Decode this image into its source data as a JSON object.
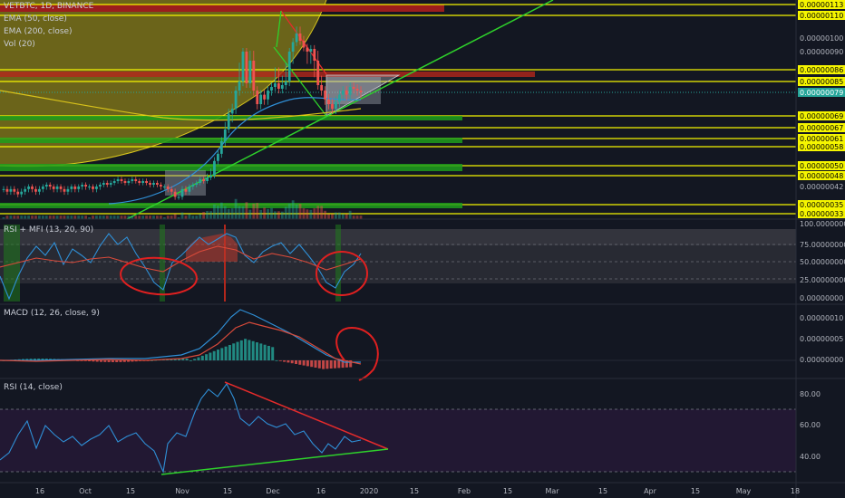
{
  "header": {
    "symbol": "VETBTC, 1D, BINANCE",
    "ema50": "EMA (50, close)",
    "ema200": "EMA (200, close)",
    "vol": "Vol (20)"
  },
  "colors": {
    "background": "#131722",
    "yellow": "#f5f500",
    "green": "#21c21e",
    "red": "#e52b2b",
    "ema50": "#2f8fd6",
    "ema200": "#d8c21a",
    "current_price_bg": "#26a69a"
  },
  "chart_data": [
    {
      "type": "candlestick",
      "title": "VETBTC, 1D, BINANCE",
      "indicators": [
        "EMA (50, close)",
        "EMA (200, close)",
        "Vol (20)"
      ],
      "ylim": [
        2e-07,
        1.15e-05
      ],
      "y_ticks": [
        "0.00000100",
        "0.00000090",
        "0.00000042"
      ],
      "price_labels": [
        {
          "value": 1.13e-06,
          "text": "0.00000113",
          "style": "yellow"
        },
        {
          "value": 1.1e-06,
          "text": "0.00000110",
          "style": "yellow"
        },
        {
          "value": 8.6e-07,
          "text": "0.00000086",
          "style": "yellow"
        },
        {
          "value": 8.5e-07,
          "text": "0.00000085",
          "style": "yellow"
        },
        {
          "value": 7.9e-07,
          "text": "0.00000079",
          "style": "current"
        },
        {
          "value": 6.9e-07,
          "text": "0.00000069",
          "style": "yellow"
        },
        {
          "value": 6.7e-07,
          "text": "0.00000067",
          "style": "yellow"
        },
        {
          "value": 6.1e-07,
          "text": "0.00000061",
          "style": "yellow"
        },
        {
          "value": 5.8e-07,
          "text": "0.00000058",
          "style": "yellow"
        },
        {
          "value": 5e-07,
          "text": "0.00000050",
          "style": "yellow"
        },
        {
          "value": 4.8e-07,
          "text": "0.00000048",
          "style": "yellow"
        },
        {
          "value": 3.5e-07,
          "text": "0.00000035",
          "style": "yellow"
        },
        {
          "value": 3.3e-07,
          "text": "0.00000033",
          "style": "yellow"
        }
      ],
      "close_series": [
        4.1e-07,
        4e-07,
        4.1e-07,
        4e-07,
        3.9e-07,
        4e-07,
        4.1e-07,
        4.2e-07,
        4.1e-07,
        4e-07,
        4.1e-07,
        4.2e-07,
        4.3e-07,
        4.2e-07,
        4.1e-07,
        4.2e-07,
        4.1e-07,
        4e-07,
        4.1e-07,
        4.2e-07,
        4.1e-07,
        4.2e-07,
        4.3e-07,
        4.2e-07,
        4.2e-07,
        4.1e-07,
        4.2e-07,
        4.3e-07,
        4.4e-07,
        4.3e-07,
        4.4e-07,
        4.5e-07,
        4.6e-07,
        4.5e-07,
        4.4e-07,
        4.5e-07,
        4.6e-07,
        4.5e-07,
        4.4e-07,
        4.5e-07,
        4.4e-07,
        4.3e-07,
        4.4e-07,
        4.3e-07,
        4.2e-07,
        4.2e-07,
        4.1e-07,
        4e-07,
        3.8e-07,
        3.8e-07,
        4.1e-07,
        4e-07,
        4.2e-07,
        4.3e-07,
        4.4e-07,
        4.6e-07,
        4.5e-07,
        4.7e-07,
        4.8e-07,
        5.2e-07,
        5.5e-07,
        6e-07,
        6.6e-07,
        7e-07,
        7.2e-07,
        8e-07,
        8.5e-07,
        9e-07,
        8.4e-07,
        8.8e-07,
        8e-07,
        7.4e-07,
        7.8e-07,
        7.6e-07,
        8e-07,
        8.2e-07,
        8.4e-07,
        8.1e-07,
        8.3e-07,
        8.5e-07,
        9e-07,
        9.7e-07,
        1.02e-06,
        9.8e-07,
        9.3e-07,
        9e-07,
        9.2e-07,
        8.8e-07,
        8.3e-07,
        8e-07,
        7.6e-07,
        7.4e-07,
        7.2e-07,
        7.5e-07,
        7.8e-07,
        8e-07,
        7.8e-07,
        8.2e-07,
        8.1e-07,
        8e-07,
        7.9e-07
      ]
    },
    {
      "type": "line",
      "title": "RSI + MFI (13, 20, 90)",
      "ylim": [
        0,
        100
      ],
      "y_ticks": [
        "100.00000000",
        "75.00000000",
        "50.00000000",
        "25.00000000",
        "0.00000000"
      ]
    },
    {
      "type": "histogram",
      "title": "MACD (12, 26, close, 9)",
      "y_ticks": [
        "0.00000010",
        "0.00000005",
        "0.00000000"
      ]
    },
    {
      "type": "line",
      "title": "RSI (14, close)",
      "ylim": [
        20,
        90
      ],
      "y_ticks": [
        "80.00",
        "60.00",
        "40.00"
      ]
    }
  ],
  "time_axis": [
    "16",
    "Oct",
    "15",
    "Nov",
    "15",
    "Dec",
    "16",
    "2020",
    "15",
    "Feb",
    "15",
    "Mar",
    "15",
    "Apr",
    "15",
    "May",
    "18"
  ]
}
